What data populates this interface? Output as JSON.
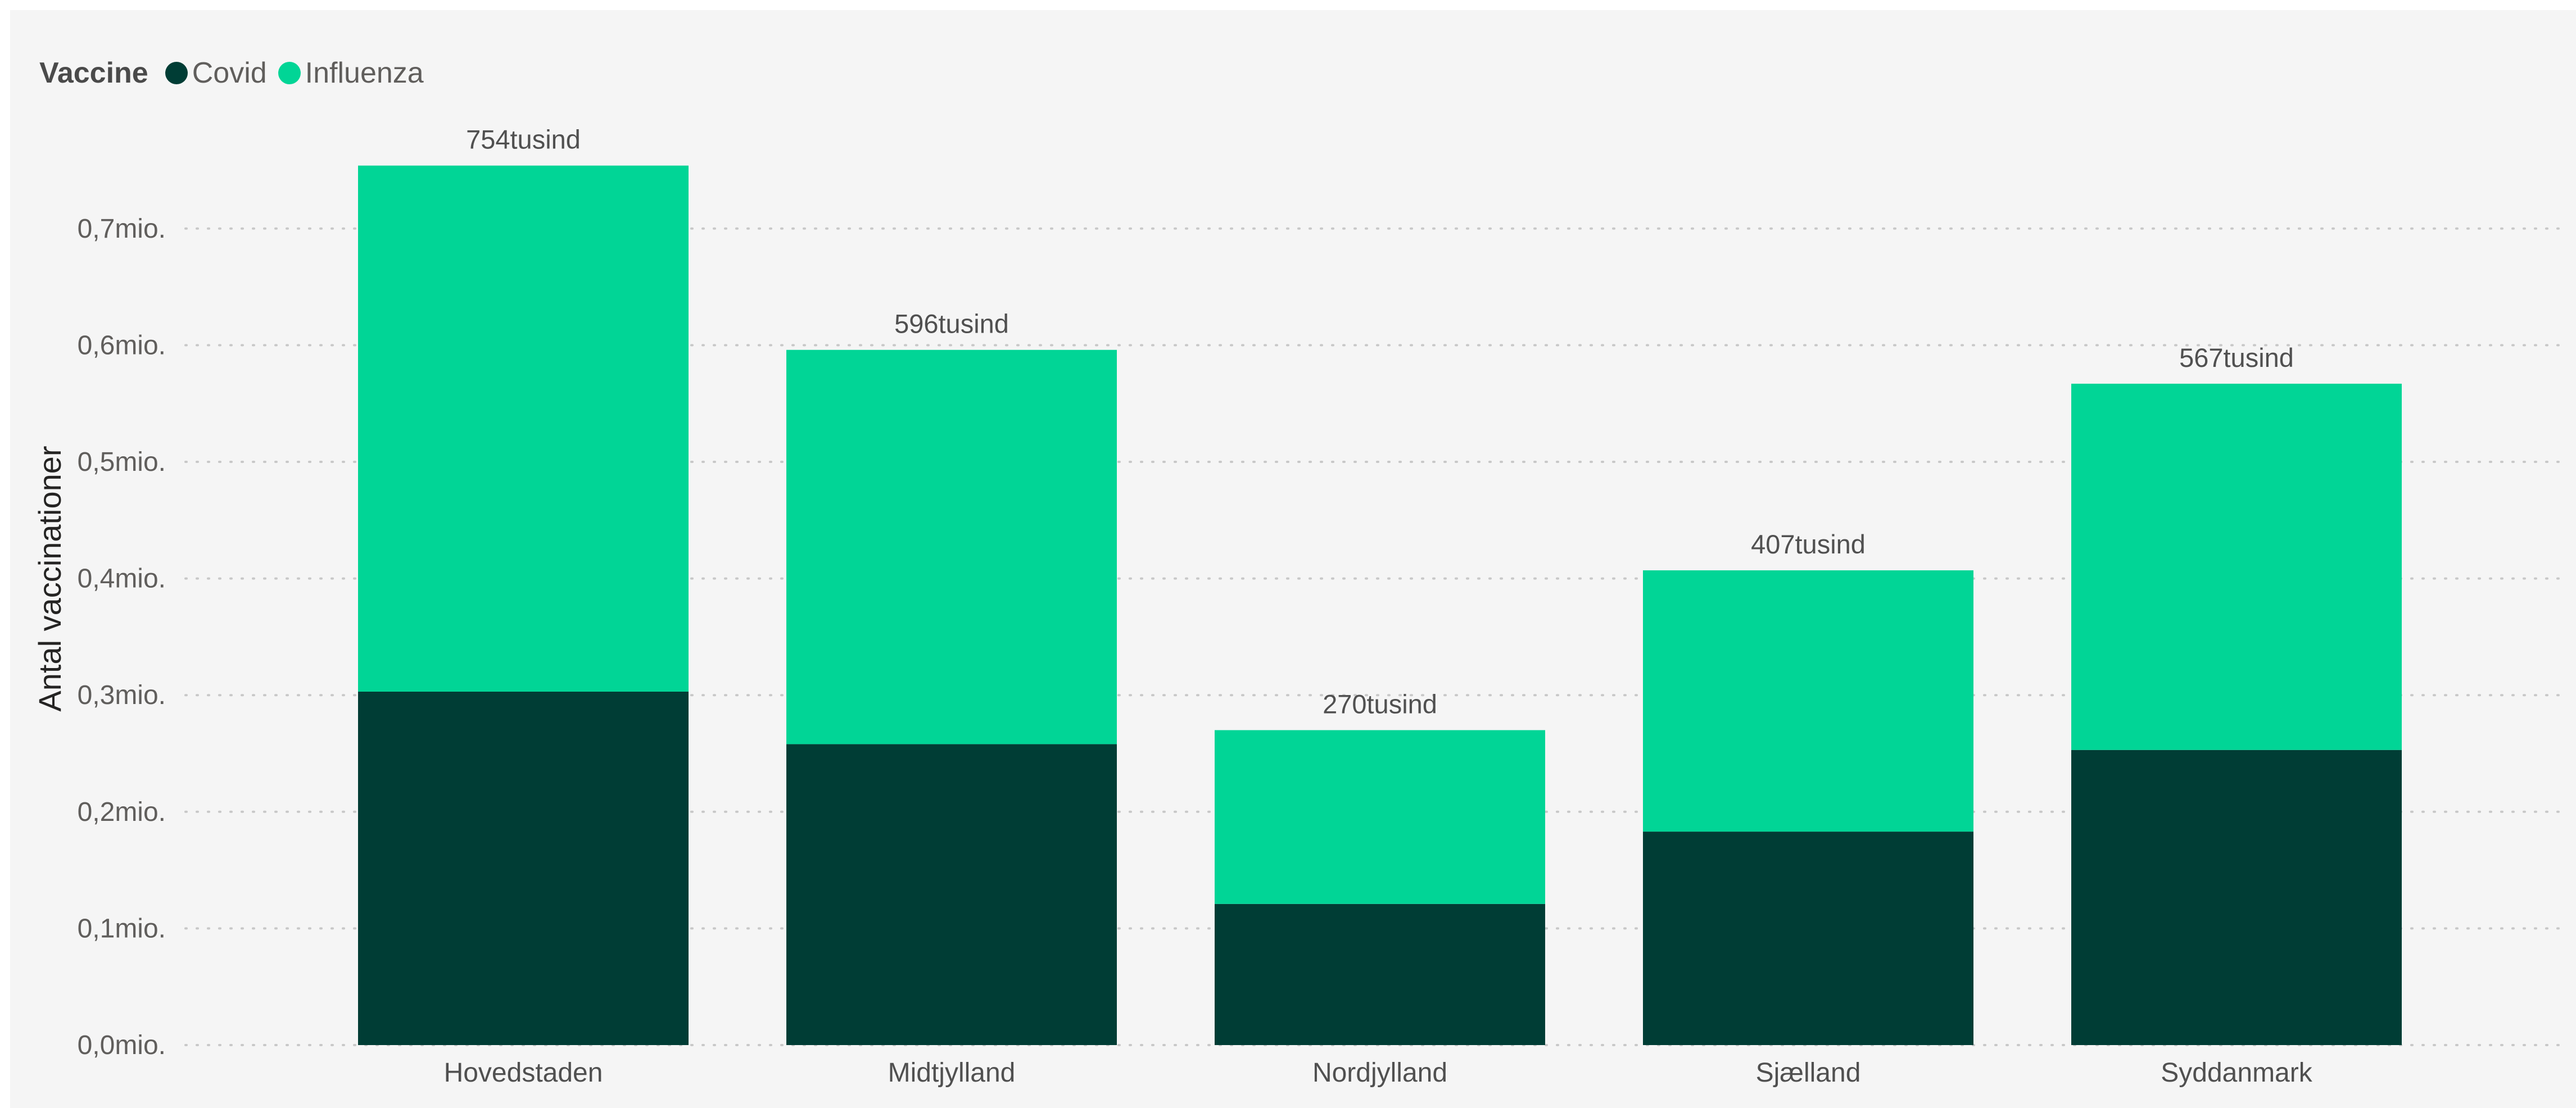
{
  "chart_data": {
    "type": "bar",
    "stacked": true,
    "legend_title": "Vaccine",
    "legend_placement": "top-left",
    "categories": [
      "Hovedstaden",
      "Midtjylland",
      "Nordjylland",
      "Sjælland",
      "Syddanmark"
    ],
    "series": [
      {
        "name": "Covid",
        "color": "#003d35",
        "values": [
          303000,
          258000,
          121000,
          183000,
          253000
        ]
      },
      {
        "name": "Influenza",
        "color": "#01d596",
        "values": [
          451000,
          338000,
          149000,
          224000,
          314000
        ]
      }
    ],
    "totals": [
      754000,
      596000,
      270000,
      407000,
      567000
    ],
    "total_labels": [
      "754tusind",
      "596tusind",
      "270tusind",
      "407tusind",
      "567tusind"
    ],
    "ylabel": "Antal vaccinationer",
    "xlabel": "",
    "ylim": [
      0,
      760000
    ],
    "yticks": [
      0,
      100000,
      200000,
      300000,
      400000,
      500000,
      600000,
      700000
    ],
    "ytick_labels": [
      "0,0mio.",
      "0,1mio.",
      "0,2mio.",
      "0,3mio.",
      "0,4mio.",
      "0,5mio.",
      "0,6mio.",
      "0,7mio."
    ],
    "grid": true
  }
}
